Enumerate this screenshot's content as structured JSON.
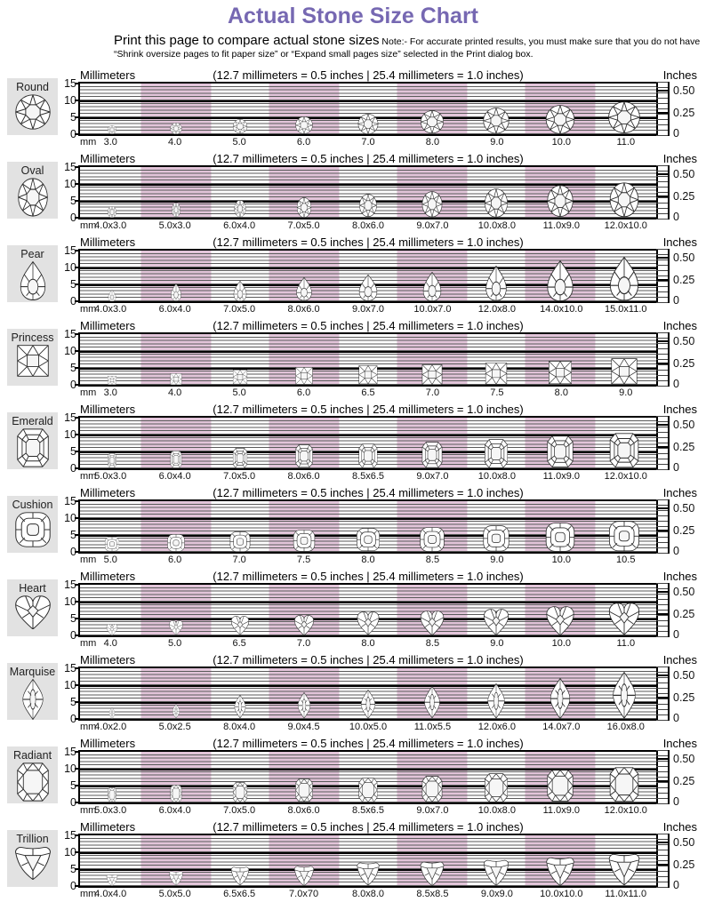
{
  "page_title": "Actual Stone Size Chart",
  "instructions": {
    "lead": "Print this page to compare actual stone sizes",
    "note": " Note:- For accurate printed results, you must make sure that you do not have",
    "note2": "“Shrink oversize pages to fit paper size” or “Expand small pages size” selected in the Print dialog box."
  },
  "colors": {
    "title": "#7668b2",
    "stripe": "rgba(185,115,165,0.42)",
    "label_box": "#e2e2e2"
  },
  "axis": {
    "mm_label": "Millimeters",
    "inches_label": "Inches",
    "conversion": "(12.7 millimeters = 0.5 inches |  25.4 millimeters = 1.0 inches)",
    "mm_ticks": [
      "15",
      "10",
      "5",
      "0"
    ],
    "mm_unit": "mm",
    "inch_ticks": [
      "0.50",
      "0.25",
      "0"
    ],
    "mm_range": [
      0,
      15
    ],
    "inch_range": [
      0,
      0.5905
    ]
  },
  "chart_data": {
    "type": "table",
    "title": "Actual Stone Size Chart",
    "description": "Ruler charts (0-15 mm vertical scale, 0-0.50+ inch scale) showing gemstone outlines at actual printed size for each shape; sizes in millimeters",
    "columns_per_row": 9,
    "rows": [
      {
        "shape": "Round",
        "icon": "round",
        "sizes": [
          "3.0",
          "4.0",
          "5.0",
          "6.0",
          "7.0",
          "8.0",
          "9.0",
          "10.0",
          "11.0"
        ]
      },
      {
        "shape": "Oval",
        "icon": "oval",
        "sizes": [
          "4.0x3.0",
          "5.0x3.0",
          "6.0x4.0",
          "7.0x5.0",
          "8.0x6.0",
          "9.0x7.0",
          "10.0x8.0",
          "11.0x9.0",
          "12.0x10.0"
        ]
      },
      {
        "shape": "Pear",
        "icon": "pear",
        "sizes": [
          "4.0x3.0",
          "6.0x4.0",
          "7.0x5.0",
          "8.0x6.0",
          "9.0x7.0",
          "10.0x7.0",
          "12.0x8.0",
          "14.0x10.0",
          "15.0x11.0"
        ]
      },
      {
        "shape": "Princess",
        "icon": "princess",
        "sizes": [
          "3.0",
          "4.0",
          "5.0",
          "6.0",
          "6.5",
          "7.0",
          "7.5",
          "8.0",
          "9.0"
        ]
      },
      {
        "shape": "Emerald",
        "icon": "emerald",
        "sizes": [
          "5.0x3.0",
          "6.0x4.0",
          "7.0x5.0",
          "8.0x6.0",
          "8.5x6.5",
          "9.0x7.0",
          "10.0x8.0",
          "11.0x9.0",
          "12.0x10.0"
        ]
      },
      {
        "shape": "Cushion",
        "icon": "cushion",
        "sizes": [
          "5.0",
          "6.0",
          "7.0",
          "7.5",
          "8.0",
          "8.5",
          "9.0",
          "10.0",
          "10.5"
        ]
      },
      {
        "shape": "Heart",
        "icon": "heart",
        "sizes": [
          "4.0",
          "5.0",
          "6.5",
          "7.0",
          "8.0",
          "8.5",
          "9.0",
          "10.0",
          "11.0"
        ]
      },
      {
        "shape": "Marquise",
        "icon": "marquise",
        "sizes": [
          "4.0x2.0",
          "5.0x2.5",
          "8.0x4.0",
          "9.0x4.5",
          "10.0x5.0",
          "11.0x5.5",
          "12.0x6.0",
          "14.0x7.0",
          "16.0x8.0"
        ]
      },
      {
        "shape": "Radiant",
        "icon": "radiant",
        "sizes": [
          "5.0x3.0",
          "6.0x4.0",
          "7.0x5.0",
          "8.0x6.0",
          "8.5x6.5",
          "9.0x7.0",
          "10.0x8.0",
          "11.0x9.0",
          "12.0x10.0"
        ]
      },
      {
        "shape": "Trillion",
        "icon": "trillion",
        "sizes": [
          "4.0x4.0",
          "5.0x5.0",
          "6.5x6.5",
          "7.0x70",
          "8.0x8.0",
          "8.5x8.5",
          "9.0x9.0",
          "10.0x10.0",
          "11.0x11.0"
        ]
      }
    ]
  }
}
